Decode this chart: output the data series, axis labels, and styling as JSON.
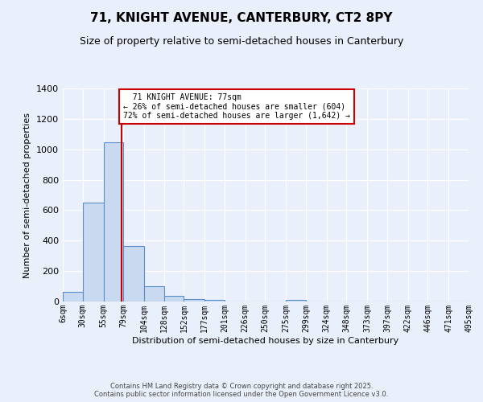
{
  "title1": "71, KNIGHT AVENUE, CANTERBURY, CT2 8PY",
  "title2": "Size of property relative to semi-detached houses in Canterbury",
  "xlabel": "Distribution of semi-detached houses by size in Canterbury",
  "ylabel": "Number of semi-detached properties",
  "property_size": 77,
  "property_label": "71 KNIGHT AVENUE: 77sqm",
  "pct_smaller": 26,
  "pct_larger": 72,
  "count_smaller": 604,
  "count_larger": 1642,
  "bin_edges": [
    6,
    30,
    55,
    79,
    104,
    128,
    152,
    177,
    201,
    226,
    250,
    275,
    299,
    324,
    348,
    373,
    397,
    422,
    446,
    471,
    495
  ],
  "bin_labels": [
    "6sqm",
    "30sqm",
    "55sqm",
    "79sqm",
    "104sqm",
    "128sqm",
    "152sqm",
    "177sqm",
    "201sqm",
    "226sqm",
    "250sqm",
    "275sqm",
    "299sqm",
    "324sqm",
    "348sqm",
    "373sqm",
    "397sqm",
    "422sqm",
    "446sqm",
    "471sqm",
    "495sqm"
  ],
  "bar_heights": [
    62,
    648,
    1047,
    365,
    103,
    35,
    17,
    8,
    0,
    0,
    0,
    10,
    0,
    0,
    0,
    0,
    0,
    0,
    0,
    0
  ],
  "bar_color": "#c8d9f0",
  "bar_edge_color": "#5b8fc9",
  "vline_x": 77,
  "vline_color": "#cc0000",
  "annotation_box_color": "#cc0000",
  "ylim": [
    0,
    1400
  ],
  "yticks": [
    0,
    200,
    400,
    600,
    800,
    1000,
    1200,
    1400
  ],
  "bg_color": "#eaf0fb",
  "grid_color": "#ffffff",
  "footer1": "Contains HM Land Registry data © Crown copyright and database right 2025.",
  "footer2": "Contains public sector information licensed under the Open Government Licence v3.0."
}
